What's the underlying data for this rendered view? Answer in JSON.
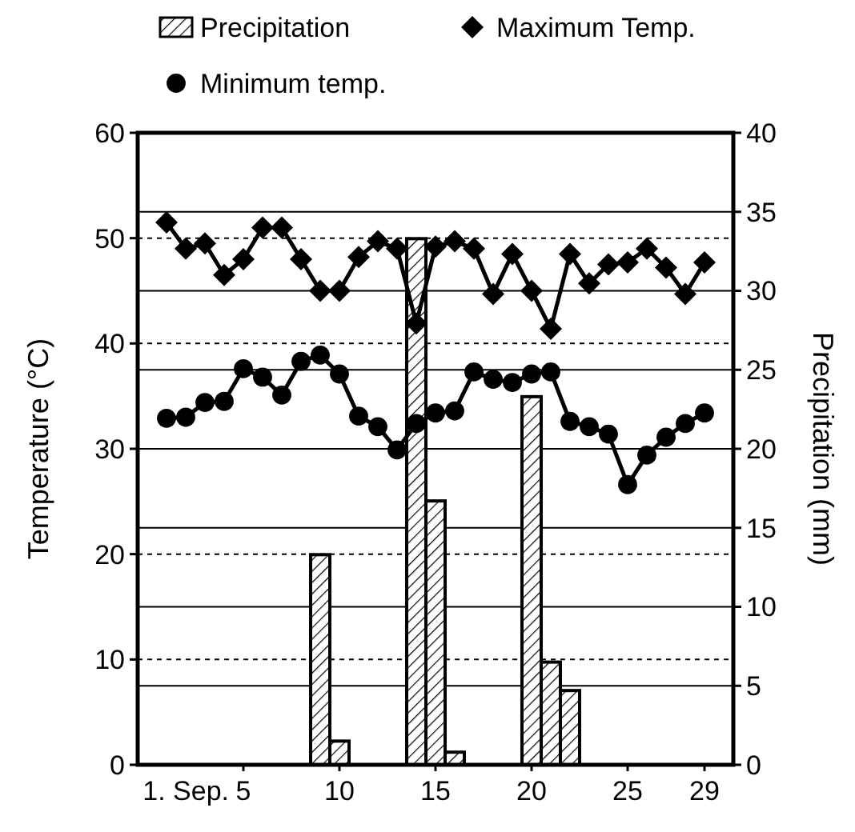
{
  "chart_data": {
    "type": "line",
    "ylabel": "Temperature (°C)",
    "y2label": "Precipitation (mm)",
    "xlim": [
      -0.5,
      30.5
    ],
    "xticks": [
      5,
      10,
      15,
      20,
      25,
      29
    ],
    "ylim": [
      0,
      60
    ],
    "yticks": [
      0,
      10,
      20,
      30,
      40,
      50,
      60
    ],
    "y2lim": [
      0,
      40
    ],
    "y2ticks": [
      0,
      5,
      10,
      15,
      20,
      25,
      30,
      35,
      40
    ],
    "grid": true,
    "legend": "top",
    "annotations": [
      "1. Sep."
    ],
    "series": [
      {
        "name": "Precipitation",
        "type": "bar",
        "axis": "y2",
        "color": "#000000",
        "x": [
          9,
          10,
          14,
          15,
          16,
          20,
          21,
          22
        ],
        "values": [
          13.3,
          1.5,
          33.3,
          16.7,
          0.8,
          23.3,
          6.5,
          4.7
        ]
      },
      {
        "name": "Maximum Temp.",
        "marker": "diamond",
        "color": "#000000",
        "x": [
          1,
          2,
          3,
          4,
          5,
          6,
          7,
          8,
          9,
          10,
          11,
          12,
          13,
          14,
          15,
          16,
          17,
          18,
          19,
          20,
          21,
          22,
          23,
          24,
          25,
          26,
          27,
          28,
          29
        ],
        "values": [
          51.5,
          49,
          49.5,
          46.5,
          48,
          51,
          51,
          48,
          45,
          45,
          48.2,
          49.7,
          49,
          41.9,
          49.2,
          49.7,
          49,
          44.7,
          48.5,
          45,
          41.4,
          48.5,
          45.7,
          47.5,
          47.7,
          49,
          47.2,
          44.7,
          47.7
        ]
      },
      {
        "name": "Minimum temp.",
        "marker": "circle",
        "color": "#000000",
        "x": [
          1,
          2,
          3,
          4,
          5,
          6,
          7,
          8,
          9,
          10,
          11,
          12,
          13,
          14,
          15,
          16,
          17,
          18,
          19,
          20,
          21,
          22,
          23,
          24,
          25,
          26,
          27,
          28,
          29
        ],
        "values": [
          32.9,
          33,
          34.4,
          34.5,
          37.6,
          36.8,
          35.1,
          38.3,
          38.9,
          37.1,
          33.1,
          32.1,
          29.9,
          32.4,
          33.4,
          33.6,
          37.3,
          36.6,
          36.3,
          37.1,
          37.3,
          32.6,
          32.1,
          31.4,
          26.6,
          29.4,
          31.1,
          32.4,
          33.4
        ]
      }
    ]
  }
}
